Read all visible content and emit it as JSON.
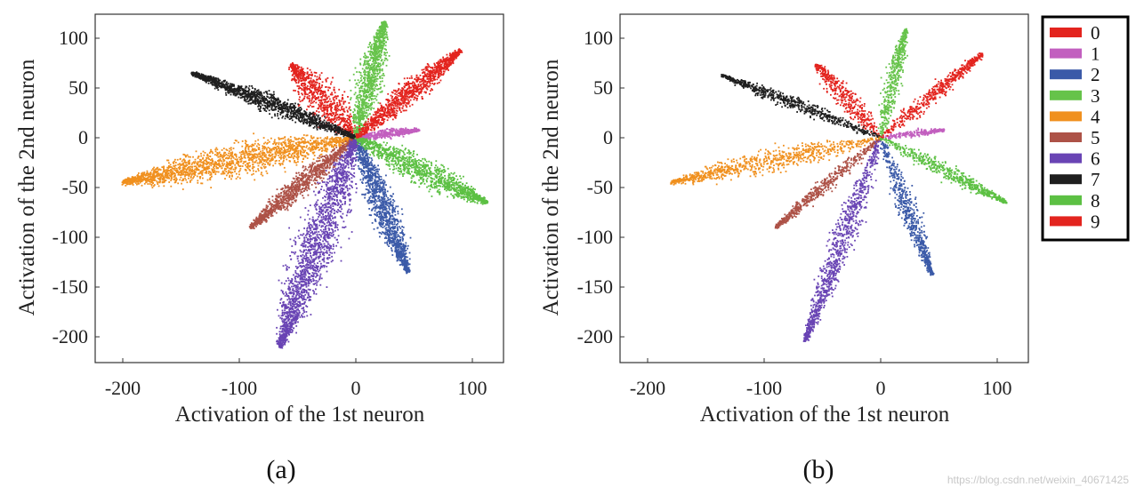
{
  "chart_data": [
    {
      "type": "scatter",
      "caption": "(a)",
      "xlabel": "Activation of the 1st neuron",
      "ylabel": "Activation of the 2nd neuron",
      "xlim": [
        -225,
        125
      ],
      "ylim": [
        -225,
        120
      ],
      "xticks": [
        -200,
        -100,
        0,
        100
      ],
      "yticks": [
        100,
        50,
        0,
        -50,
        -100,
        -150,
        -200
      ],
      "grid": false,
      "series": [
        {
          "name": "0",
          "color": "#e3241e",
          "tip": [
            -60,
            80
          ],
          "length": 92,
          "width": 30
        },
        {
          "name": "1",
          "color": "#c25fbf",
          "tip": [
            55,
            8
          ],
          "length": 55,
          "width": 8
        },
        {
          "name": "2",
          "color": "#3b5aa8",
          "tip": [
            45,
            -135
          ],
          "length": 142,
          "width": 22
        },
        {
          "name": "3",
          "color": "#66c34a",
          "tip": [
            25,
            118
          ],
          "length": 120,
          "width": 22
        },
        {
          "name": "4",
          "color": "#f0901e",
          "tip": [
            -200,
            -45
          ],
          "length": 205,
          "width": 32
        },
        {
          "name": "5",
          "color": "#ad5247",
          "tip": [
            -92,
            -92
          ],
          "length": 128,
          "width": 18
        },
        {
          "name": "6",
          "color": "#6944b4",
          "tip": [
            -65,
            -210
          ],
          "length": 220,
          "width": 34
        },
        {
          "name": "7",
          "color": "#1f1f1f",
          "tip": [
            -140,
            65
          ],
          "length": 155,
          "width": 16
        },
        {
          "name": "8",
          "color": "#5cc043",
          "tip": [
            112,
            -65
          ],
          "length": 130,
          "width": 24
        },
        {
          "name": "9",
          "color": "#e3241e",
          "tip": [
            90,
            88
          ],
          "length": 126,
          "width": 20
        }
      ]
    },
    {
      "type": "scatter",
      "caption": "(b)",
      "xlabel": "Activation of the 1st neuron",
      "ylabel": "Activation of the 2nd neuron",
      "xlim": [
        -225,
        125
      ],
      "ylim": [
        -225,
        120
      ],
      "xticks": [
        -200,
        -100,
        0,
        100
      ],
      "yticks": [
        100,
        50,
        0,
        -50,
        -100,
        -150,
        -200
      ],
      "grid": false,
      "series": [
        {
          "name": "0",
          "color": "#e3241e",
          "tip": [
            -60,
            80
          ],
          "length": 92,
          "width": 20
        },
        {
          "name": "1",
          "color": "#c25fbf",
          "tip": [
            55,
            8
          ],
          "length": 55,
          "width": 6
        },
        {
          "name": "2",
          "color": "#3b5aa8",
          "tip": [
            45,
            -140
          ],
          "length": 145,
          "width": 16
        },
        {
          "name": "3",
          "color": "#66c34a",
          "tip": [
            22,
            112
          ],
          "length": 112,
          "width": 14
        },
        {
          "name": "4",
          "color": "#f0901e",
          "tip": [
            -180,
            -45
          ],
          "length": 185,
          "width": 22
        },
        {
          "name": "5",
          "color": "#ad5247",
          "tip": [
            -92,
            -92
          ],
          "length": 128,
          "width": 12
        },
        {
          "name": "6",
          "color": "#6944b4",
          "tip": [
            -65,
            -205
          ],
          "length": 215,
          "width": 20
        },
        {
          "name": "7",
          "color": "#1f1f1f",
          "tip": [
            -135,
            62
          ],
          "length": 150,
          "width": 12
        },
        {
          "name": "8",
          "color": "#5cc043",
          "tip": [
            108,
            -65
          ],
          "length": 126,
          "width": 14
        },
        {
          "name": "9",
          "color": "#e3241e",
          "tip": [
            88,
            85
          ],
          "length": 122,
          "width": 14
        }
      ]
    }
  ],
  "legend": {
    "position": "right",
    "entries": [
      {
        "label": "0",
        "color": "#e3241e"
      },
      {
        "label": "1",
        "color": "#c25fbf"
      },
      {
        "label": "2",
        "color": "#3b5aa8"
      },
      {
        "label": "3",
        "color": "#66c34a"
      },
      {
        "label": "4",
        "color": "#f0901e"
      },
      {
        "label": "5",
        "color": "#ad5247"
      },
      {
        "label": "6",
        "color": "#6944b4"
      },
      {
        "label": "7",
        "color": "#1f1f1f"
      },
      {
        "label": "8",
        "color": "#5cc043"
      },
      {
        "label": "9",
        "color": "#e3241e"
      }
    ]
  },
  "watermark": "https://blog.csdn.net/weixin_40671425"
}
